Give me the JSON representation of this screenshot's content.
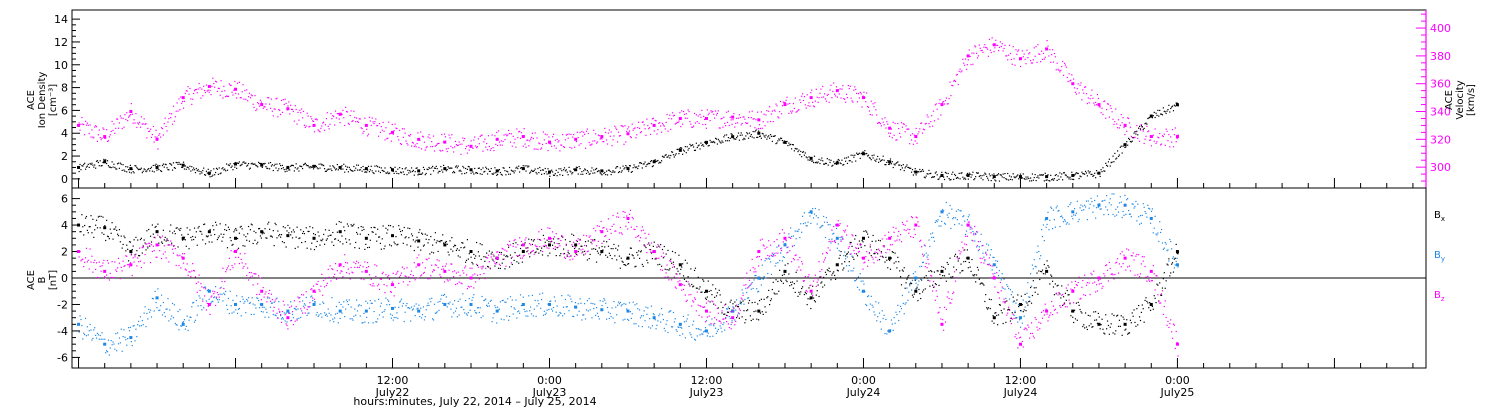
{
  "figure": {
    "xlabel": "hours:minutes, July 22, 2014 – July 25, 2014",
    "xrange_hours": [
      -12.5,
      91
    ],
    "x_ticks": [
      {
        "h": 12,
        "time": "12:00",
        "date": "July22"
      },
      {
        "h": 24,
        "time": "0:00",
        "date": "July23"
      },
      {
        "h": 36,
        "time": "12:00",
        "date": "July23"
      },
      {
        "h": 48,
        "time": "0:00",
        "date": "July24"
      },
      {
        "h": 60,
        "time": "12:00",
        "date": "July24"
      },
      {
        "h": 72,
        "time": "0:00",
        "date": "July25"
      }
    ],
    "x_ticks_note_hours": "x values are hours after 2014-07-22 00:00"
  },
  "chart_data": [
    {
      "type": "scatter",
      "panel": "top",
      "ylabel_left": [
        "ACE",
        "Ion Density",
        "[cm⁻³]"
      ],
      "ylabel_right": [
        "ACE",
        "Velocity",
        "[km/s]"
      ],
      "ylim_left": [
        -0.8,
        14.8
      ],
      "ylim_right": [
        285,
        413
      ],
      "yticks_left": [
        0,
        2,
        4,
        6,
        8,
        10,
        12,
        14
      ],
      "yticks_right": [
        300,
        320,
        340,
        360,
        380,
        400
      ],
      "colors": {
        "density": "#000000",
        "velocity": "#ff00ff"
      },
      "series": [
        {
          "name": "Ion Density",
          "axis": "left",
          "color": "#000000",
          "x": [
            -12,
            -10,
            -8,
            -6,
            -4,
            -2,
            0,
            2,
            4,
            6,
            8,
            10,
            12,
            14,
            16,
            18,
            20,
            22,
            24,
            26,
            28,
            30,
            32,
            34,
            36,
            38,
            40,
            42,
            44,
            46,
            48,
            50,
            52,
            54,
            56,
            58,
            60,
            62,
            64,
            66,
            68,
            70,
            72
          ],
          "y": [
            1.0,
            1.5,
            0.9,
            1.0,
            1.2,
            0.5,
            1.3,
            1.2,
            1.0,
            1.1,
            1.0,
            0.9,
            0.8,
            0.7,
            0.9,
            0.8,
            0.7,
            0.9,
            0.6,
            0.8,
            0.7,
            0.9,
            1.5,
            2.5,
            3.2,
            3.7,
            4.0,
            3.2,
            1.8,
            1.4,
            2.2,
            1.5,
            0.6,
            0.3,
            0.3,
            0.2,
            0.2,
            0.2,
            0.3,
            0.5,
            3.0,
            5.5,
            6.5
          ]
        },
        {
          "name": "Velocity",
          "axis": "right",
          "color": "#ff00ff",
          "x": [
            -12,
            -10,
            -8,
            -6,
            -4,
            -2,
            0,
            2,
            4,
            6,
            8,
            10,
            12,
            14,
            16,
            18,
            20,
            22,
            24,
            26,
            28,
            30,
            32,
            34,
            36,
            38,
            40,
            42,
            44,
            46,
            48,
            50,
            52,
            54,
            56,
            58,
            60,
            62,
            64,
            66,
            68,
            70,
            72
          ],
          "y": [
            330,
            322,
            340,
            320,
            350,
            358,
            356,
            345,
            342,
            330,
            338,
            330,
            325,
            320,
            318,
            315,
            320,
            322,
            318,
            320,
            322,
            324,
            330,
            335,
            335,
            336,
            334,
            345,
            350,
            355,
            350,
            328,
            322,
            345,
            380,
            388,
            378,
            385,
            360,
            345,
            330,
            322,
            322
          ]
        }
      ]
    },
    {
      "type": "scatter",
      "panel": "bottom",
      "ylabel_left": [
        "ACE",
        "B",
        "[nT]"
      ],
      "ylim": [
        -6.8,
        6.8
      ],
      "yticks": [
        -6,
        -4,
        -2,
        0,
        2,
        4,
        6
      ],
      "zero_line": true,
      "colors": {
        "Bx": "#000000",
        "By": "#1e88e5",
        "Bz": "#ff00ff"
      },
      "series": [
        {
          "name": "Bx",
          "label": "B",
          "sub": "x",
          "color": "#000000",
          "x": [
            -12,
            -10,
            -8,
            -6,
            -4,
            -2,
            0,
            2,
            4,
            6,
            8,
            10,
            12,
            14,
            16,
            18,
            20,
            22,
            24,
            26,
            28,
            30,
            32,
            34,
            36,
            38,
            40,
            42,
            44,
            46,
            48,
            50,
            52,
            54,
            56,
            58,
            60,
            62,
            64,
            66,
            68,
            70,
            72
          ],
          "y": [
            4.0,
            3.8,
            2.0,
            3.5,
            3.0,
            3.5,
            3.0,
            3.5,
            3.2,
            3.0,
            3.5,
            3.0,
            3.2,
            2.8,
            2.5,
            2.0,
            1.5,
            2.0,
            2.5,
            2.5,
            2.0,
            1.5,
            2.0,
            1.0,
            -1.0,
            -2.5,
            -2.5,
            0.5,
            -1.5,
            1.0,
            3.0,
            1.5,
            -1.0,
            0.5,
            1.5,
            -3.0,
            -2.0,
            0.5,
            -2.5,
            -3.5,
            -3.5,
            -2.0,
            2.0
          ]
        },
        {
          "name": "By",
          "label": "B",
          "sub": "y",
          "color": "#1e88e5",
          "x": [
            -12,
            -10,
            -8,
            -6,
            -4,
            -2,
            0,
            2,
            4,
            6,
            8,
            10,
            12,
            14,
            16,
            18,
            20,
            22,
            24,
            26,
            28,
            30,
            32,
            34,
            36,
            38,
            40,
            42,
            44,
            46,
            48,
            50,
            52,
            54,
            56,
            58,
            60,
            62,
            64,
            66,
            68,
            70,
            72
          ],
          "y": [
            -3.5,
            -5.0,
            -4.5,
            -1.5,
            -3.5,
            -1.0,
            -2.0,
            -2.0,
            -2.5,
            -2.0,
            -2.5,
            -2.5,
            -2.3,
            -2.5,
            -2.0,
            -2.0,
            -2.5,
            -2.0,
            -2.0,
            -2.2,
            -2.4,
            -2.5,
            -3.0,
            -3.5,
            -4.0,
            -2.5,
            0.0,
            2.5,
            5.0,
            3.0,
            -1.0,
            -4.0,
            0.0,
            5.0,
            4.0,
            1.0,
            -3.0,
            4.5,
            5.0,
            5.5,
            5.5,
            4.5,
            1.0
          ]
        },
        {
          "name": "Bz",
          "label": "B",
          "sub": "z",
          "color": "#ff00ff",
          "x": [
            -12,
            -10,
            -8,
            -6,
            -4,
            -2,
            0,
            2,
            4,
            6,
            8,
            10,
            12,
            14,
            16,
            18,
            20,
            22,
            24,
            26,
            28,
            30,
            32,
            34,
            36,
            38,
            40,
            42,
            44,
            46,
            48,
            50,
            52,
            54,
            56,
            58,
            60,
            62,
            64,
            66,
            68,
            70,
            72
          ],
          "y": [
            2.0,
            0.5,
            1.0,
            2.5,
            1.5,
            -2.0,
            2.0,
            -1.0,
            -3.0,
            -1.0,
            1.0,
            0.5,
            -0.5,
            1.0,
            0.5,
            0.0,
            1.5,
            2.5,
            3.0,
            2.0,
            3.5,
            4.5,
            2.0,
            -0.5,
            -2.5,
            -3.0,
            2.0,
            3.0,
            -1.0,
            4.0,
            1.5,
            3.0,
            4.0,
            -3.5,
            4.0,
            0.0,
            -5.0,
            -2.5,
            -1.0,
            0.0,
            1.5,
            0.5,
            -5.0
          ]
        }
      ]
    }
  ]
}
